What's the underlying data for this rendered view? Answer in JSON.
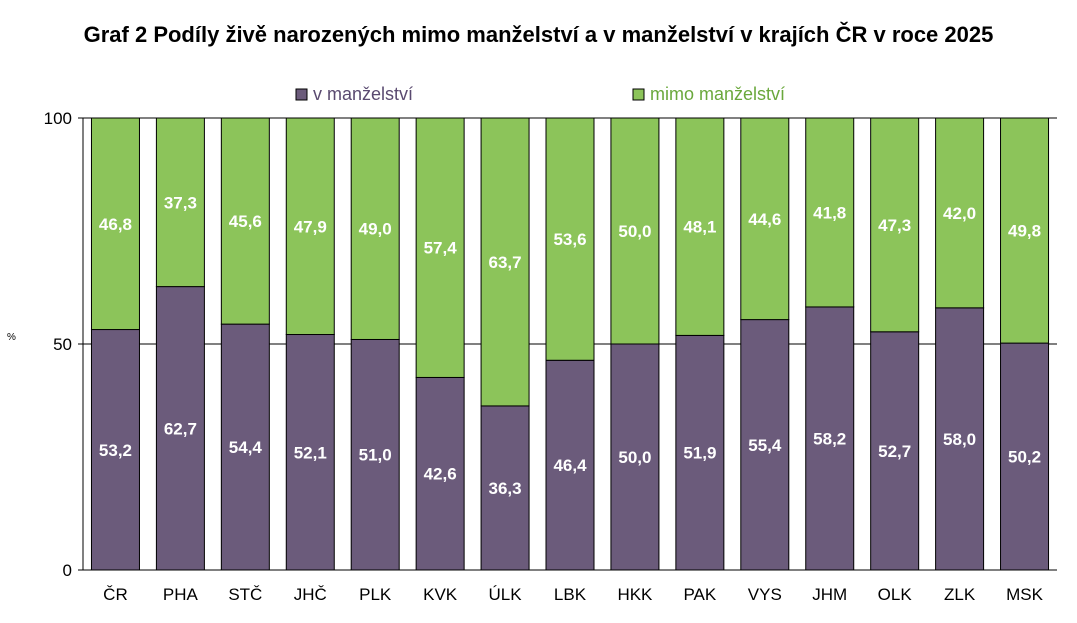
{
  "title": "Graf 2 Podíly živě narozených mimo manželství a v manželství v krajích ČR v roce 2025",
  "colors": {
    "in_marriage": "#6b5b7b",
    "out_of_marriage": "#8cc45a",
    "gridline": "#000000",
    "legend_in_text": "#5a4a70",
    "legend_out_text": "#6aa83c"
  },
  "chart_data": {
    "type": "bar",
    "stacked": true,
    "categories": [
      "ČR",
      "PHA",
      "STČ",
      "JHČ",
      "PLK",
      "KVK",
      "ÚLK",
      "LBK",
      "HKK",
      "PAK",
      "VYS",
      "JHM",
      "OLK",
      "ZLK",
      "MSK"
    ],
    "series": [
      {
        "name": "v manželství",
        "values": [
          53.2,
          62.7,
          54.4,
          52.1,
          51.0,
          42.6,
          36.3,
          46.4,
          50.0,
          51.9,
          55.4,
          58.2,
          52.7,
          58.0,
          50.2
        ]
      },
      {
        "name": "mimo manželství",
        "values": [
          46.8,
          37.3,
          45.6,
          47.9,
          49.0,
          57.4,
          63.7,
          53.6,
          50.0,
          48.1,
          44.6,
          41.8,
          47.3,
          42.0,
          49.8
        ]
      }
    ],
    "value_labels": {
      "v manželství": [
        "53,2",
        "62,7",
        "54,4",
        "52,1",
        "51,0",
        "42,6",
        "36,3",
        "46,4",
        "50,0",
        "51,9",
        "55,4",
        "58,2",
        "52,7",
        "58,0",
        "50,2"
      ],
      "mimo manželství": [
        "46,8",
        "37,3",
        "45,6",
        "47,9",
        "49,0",
        "57,4",
        "63,7",
        "53,6",
        "50,0",
        "48,1",
        "44,6",
        "41,8",
        "47,3",
        "42,0",
        "49,8"
      ]
    },
    "ylabel": "%",
    "ylim": [
      0,
      100
    ],
    "yticks": [
      0,
      50,
      100
    ],
    "grid": true,
    "legend_position": "top"
  }
}
